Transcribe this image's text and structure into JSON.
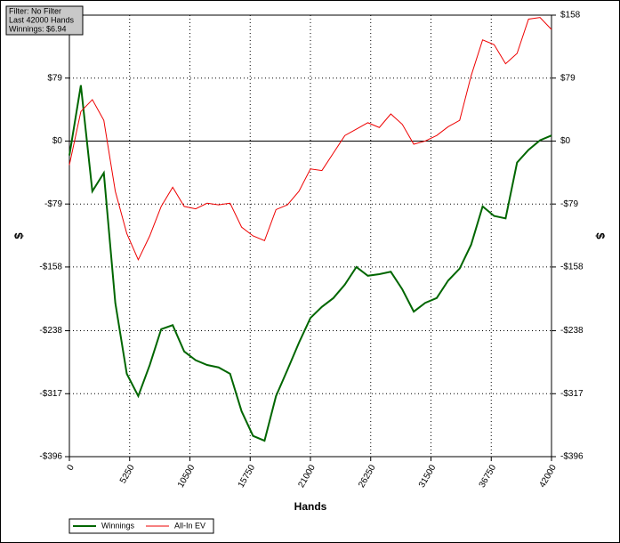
{
  "chart_data": {
    "type": "line",
    "info": [
      "Filter: No Filter",
      "Last  42000 Hands",
      "Winnings: $6.94"
    ],
    "xlabel": "Hands",
    "ylabel": "$",
    "x": [
      0,
      1000,
      2000,
      3000,
      4000,
      5000,
      6000,
      7000,
      8000,
      9000,
      10000,
      11000,
      12000,
      13000,
      14000,
      15000,
      16000,
      17000,
      18000,
      19000,
      20000,
      21000,
      22000,
      23000,
      24000,
      25000,
      26000,
      27000,
      28000,
      29000,
      30000,
      31000,
      32000,
      33000,
      34000,
      35000,
      36000,
      37000,
      38000,
      39000,
      40000,
      41000,
      42000
    ],
    "series": [
      {
        "name": "Winnings",
        "color": "#006600",
        "values": [
          -18,
          70,
          -63,
          -40,
          -203,
          -292,
          -320,
          -281,
          -236,
          -231,
          -264,
          -275,
          -281,
          -284,
          -292,
          -339,
          -370,
          -376,
          -320,
          -287,
          -253,
          -222,
          -208,
          -197,
          -180,
          -158,
          -169,
          -167,
          -164,
          -186,
          -214,
          -203,
          -197,
          -175,
          -160,
          -130,
          -82,
          -94,
          -97,
          -27,
          -11,
          1,
          7
        ]
      },
      {
        "name": "All-In EV",
        "color": "#ee0000",
        "values": [
          -30,
          37,
          52,
          26,
          -63,
          -116,
          -149,
          -119,
          -82,
          -58,
          -82,
          -85,
          -78,
          -80,
          -78,
          -108,
          -119,
          -125,
          -86,
          -80,
          -63,
          -35,
          -37,
          -15,
          7,
          15,
          23,
          17,
          34,
          21,
          -4,
          0,
          7,
          18,
          26,
          82,
          127,
          121,
          97,
          110,
          153,
          155,
          140
        ]
      }
    ],
    "xlim": [
      0,
      42000
    ],
    "xticks": [
      0,
      5250,
      10500,
      15750,
      21000,
      26250,
      31500,
      36750,
      42000
    ],
    "ylim": [
      -396,
      158
    ],
    "yticks": [
      {
        "value": -396,
        "label": "-$396"
      },
      {
        "value": -317,
        "label": "-$317"
      },
      {
        "value": -238,
        "label": "-$238"
      },
      {
        "value": -158,
        "label": "-$158"
      },
      {
        "value": -79,
        "label": "-$79"
      },
      {
        "value": 0,
        "label": "$0"
      },
      {
        "value": 79,
        "label": "$79"
      },
      {
        "value": 158,
        "label": "$158"
      }
    ],
    "grid": true
  }
}
